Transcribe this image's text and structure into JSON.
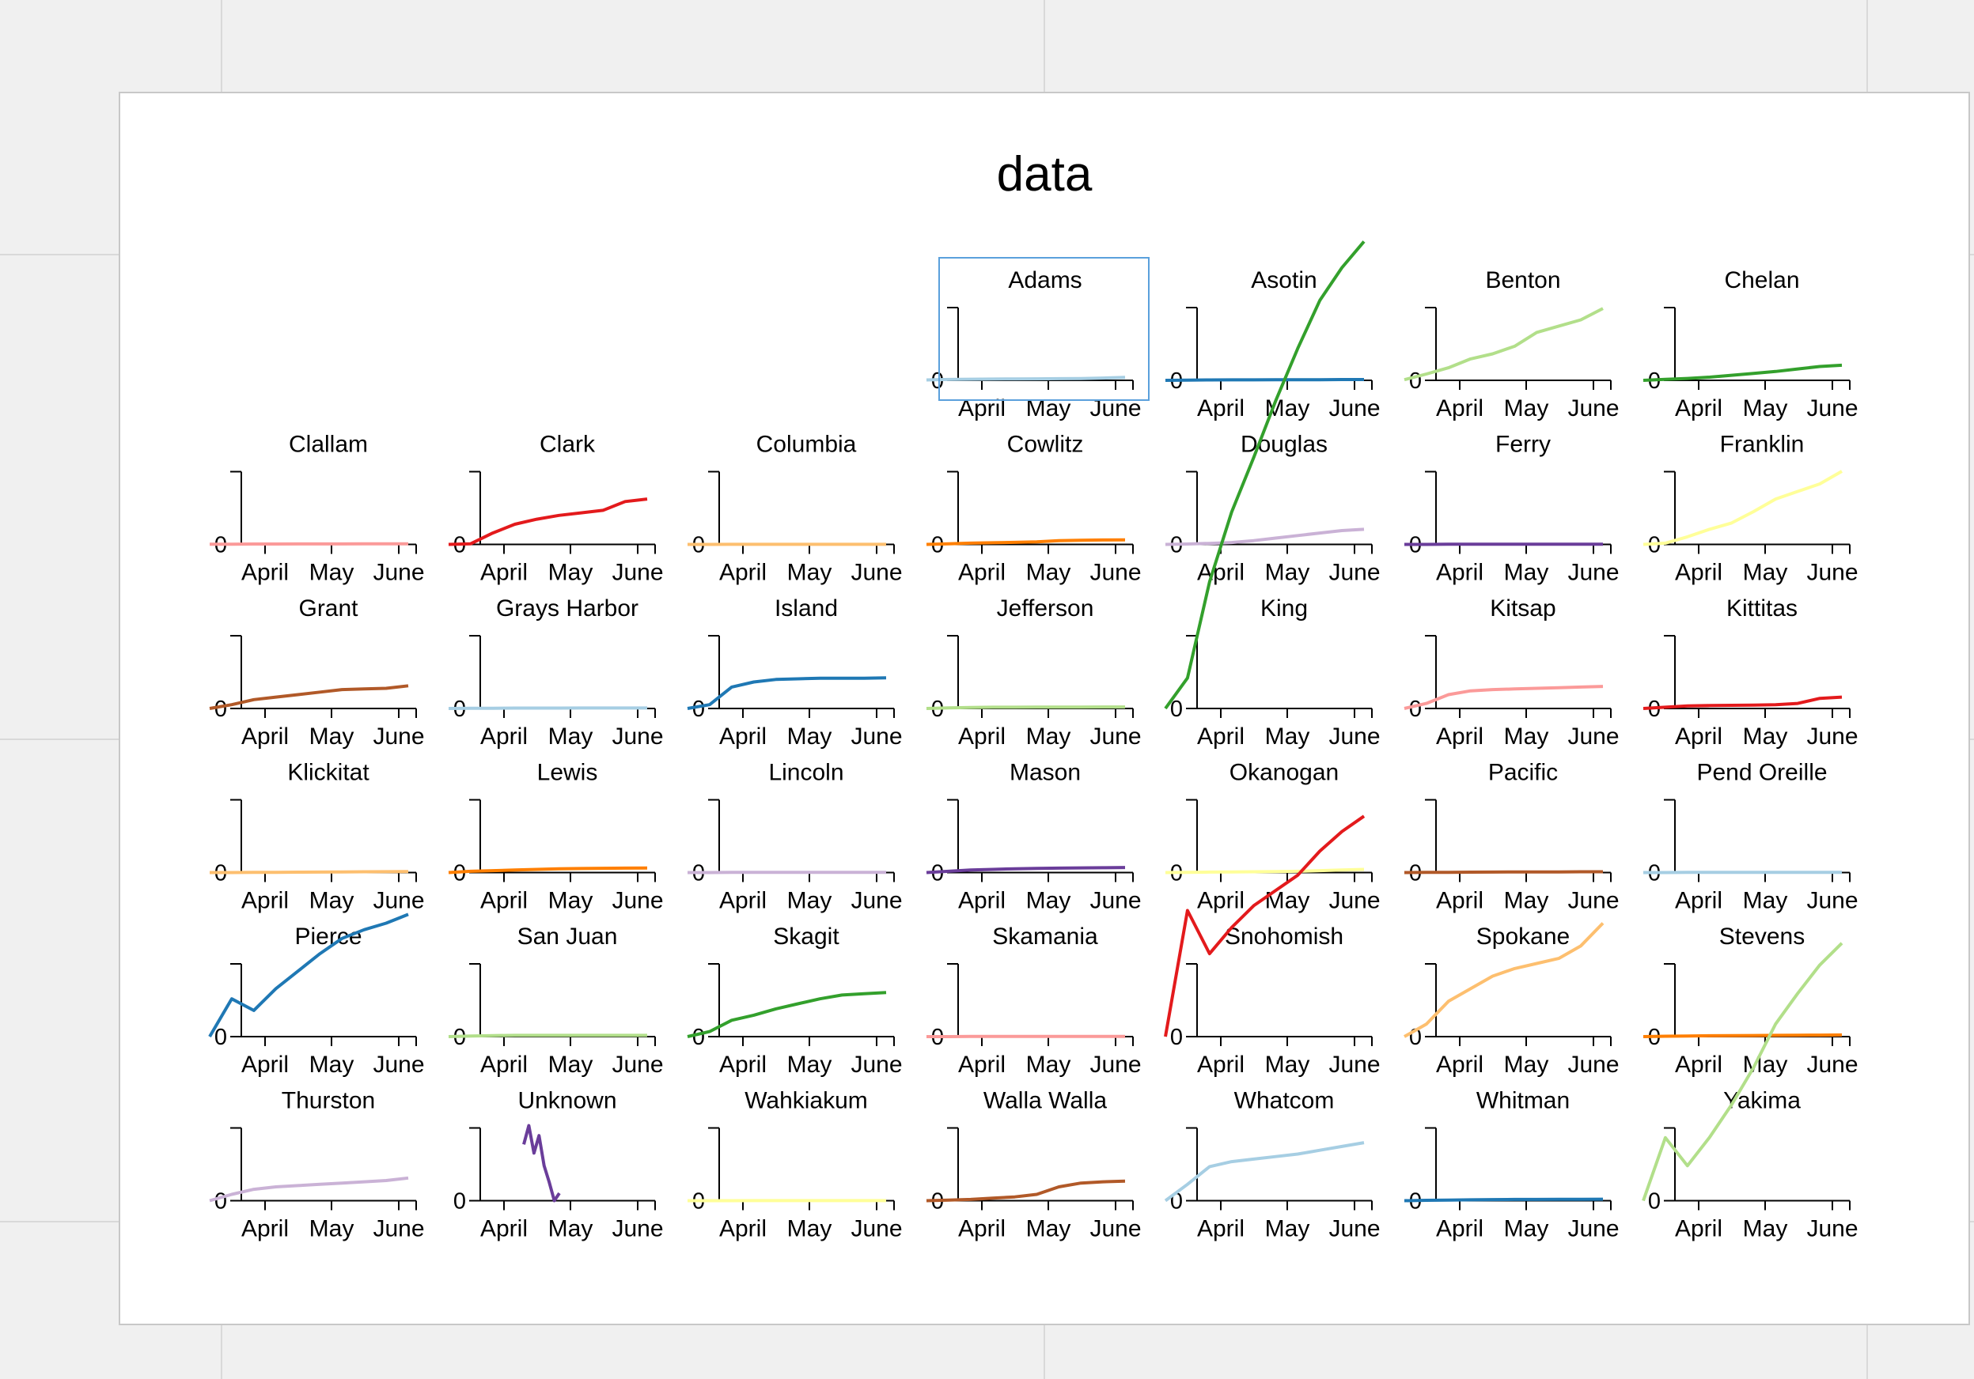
{
  "window": {
    "title": "data"
  },
  "chart_data": {
    "type": "line",
    "title": "data",
    "layout": "facet-grid",
    "grid_columns": 7,
    "x_tick_labels": [
      "April",
      "May",
      "June"
    ],
    "y_tick_labels": [
      "0"
    ],
    "x_range": [
      "2020-03-20",
      "2020-06-10"
    ],
    "selected_facet": "Adams",
    "facets": [
      {
        "name": "Adams",
        "color": "#a6cee3",
        "values": [
          0.3,
          0.7,
          0.9,
          1.0,
          1.1,
          1.2,
          1.3,
          1.4,
          1.8,
          2.4
        ]
      },
      {
        "name": "Asotin",
        "color": "#1f78b4",
        "values": [
          0,
          0.2,
          0.3,
          0.4,
          0.4,
          0.5,
          0.5,
          0.5,
          0.6,
          0.6
        ]
      },
      {
        "name": "Benton",
        "color": "#b2df8a",
        "values": [
          0.5,
          5,
          10,
          17,
          21,
          27,
          38,
          43,
          48,
          57
        ]
      },
      {
        "name": "Chelan",
        "color": "#33a02c",
        "values": [
          0,
          0.8,
          1.5,
          2.5,
          4,
          5.5,
          7,
          9,
          11,
          12
        ]
      },
      {
        "name": "Clallam",
        "color": "#fb9a99",
        "values": [
          0.1,
          0.2,
          0.3,
          0.3,
          0.4,
          0.4,
          0.4,
          0.5,
          0.5,
          0.5
        ]
      },
      {
        "name": "Clark",
        "color": "#e31a1c",
        "values": [
          0,
          0.5,
          9,
          16,
          20,
          23,
          25,
          27,
          34,
          36
        ]
      },
      {
        "name": "Columbia",
        "color": "#fdbf6f",
        "values": [
          0,
          0,
          0.05,
          0.05,
          0.05,
          0.05,
          0.05,
          0.05,
          0.05,
          0.05
        ]
      },
      {
        "name": "Cowlitz",
        "color": "#ff7f00",
        "values": [
          0,
          0.5,
          1,
          1.3,
          1.6,
          2,
          3,
          3.3,
          3.5,
          3.6
        ]
      },
      {
        "name": "Douglas",
        "color": "#cab2d6",
        "values": [
          0,
          0.3,
          0.8,
          1.5,
          3,
          5,
          7,
          9,
          11,
          12
        ]
      },
      {
        "name": "Ferry",
        "color": "#6a3d9a",
        "values": [
          0,
          0,
          0.1,
          0.1,
          0.1,
          0.1,
          0.1,
          0.1,
          0.1,
          0.1
        ]
      },
      {
        "name": "Franklin",
        "color": "#ffff99",
        "values": [
          0,
          1,
          6,
          12,
          17,
          26,
          36,
          42,
          48,
          58
        ]
      },
      {
        "name": "Grant",
        "color": "#b15928",
        "values": [
          0,
          3,
          7,
          9,
          11,
          13,
          15,
          15.5,
          16,
          18
        ]
      },
      {
        "name": "Grays Harbor",
        "color": "#a6cee3",
        "values": [
          0,
          0.1,
          0.2,
          0.3,
          0.3,
          0.3,
          0.4,
          0.4,
          0.4,
          0.4
        ]
      },
      {
        "name": "Island",
        "color": "#1f78b4",
        "values": [
          0,
          3,
          17,
          21,
          23,
          23.5,
          24,
          24,
          24,
          24.3
        ]
      },
      {
        "name": "Jefferson",
        "color": "#b2df8a",
        "values": [
          0,
          0.5,
          0.8,
          1,
          1,
          1.1,
          1.1,
          1.1,
          1.2,
          1.2
        ]
      },
      {
        "name": "King",
        "color": "#33a02c",
        "values": [
          0,
          140,
          580,
          900,
          1150,
          1410,
          1650,
          1870,
          2020,
          2140
        ]
      },
      {
        "name": "Kitsap",
        "color": "#fb9a99",
        "values": [
          0,
          4,
          11,
          14,
          15,
          15.5,
          16,
          16.5,
          17,
          17.5
        ]
      },
      {
        "name": "Kittitas",
        "color": "#e31a1c",
        "values": [
          0,
          1,
          2,
          2.3,
          2.5,
          2.7,
          3,
          4,
          8,
          9
        ]
      },
      {
        "name": "Klickitat",
        "color": "#fdbf6f",
        "values": [
          0,
          0,
          0.1,
          0.2,
          0.3,
          0.4,
          0.5,
          0.6,
          0.7,
          0.8
        ]
      },
      {
        "name": "Lewis",
        "color": "#ff7f00",
        "values": [
          0,
          1,
          1.5,
          2,
          2.5,
          3,
          3.2,
          3.4,
          3.5,
          3.6
        ]
      },
      {
        "name": "Lincoln",
        "color": "#cab2d6",
        "values": [
          0,
          0,
          0.1,
          0.1,
          0.1,
          0.1,
          0.1,
          0.1,
          0.1,
          0.1
        ]
      },
      {
        "name": "Mason",
        "color": "#6a3d9a",
        "values": [
          0,
          1,
          2,
          2.5,
          3,
          3.3,
          3.5,
          3.7,
          3.8,
          4
        ]
      },
      {
        "name": "Okanogan",
        "color": "#ffff99",
        "values": [
          0,
          0.2,
          0.4,
          0.5,
          0.6,
          0.8,
          1,
          1.5,
          2,
          2.5
        ]
      },
      {
        "name": "Pacific",
        "color": "#b15928",
        "values": [
          0,
          0.1,
          0.2,
          0.3,
          0.4,
          0.5,
          0.5,
          0.5,
          0.6,
          0.6
        ]
      },
      {
        "name": "Pend Oreille",
        "color": "#a6cee3",
        "values": [
          0,
          0,
          0.1,
          0.1,
          0.1,
          0.1,
          0.1,
          0.1,
          0.1,
          0.1
        ]
      },
      {
        "name": "Pierce",
        "color": "#1f78b4",
        "values": [
          0,
          30,
          120,
          220,
          300,
          380,
          450,
          490,
          520,
          560
        ]
      },
      {
        "name": "San Juan",
        "color": "#b2df8a",
        "values": [
          0,
          0.5,
          0.8,
          1,
          1,
          1,
          1,
          1,
          1,
          1
        ]
      },
      {
        "name": "Skagit",
        "color": "#33a02c",
        "values": [
          0,
          4,
          13,
          17,
          22,
          26,
          30,
          33,
          34,
          35
        ]
      },
      {
        "name": "Skamania",
        "color": "#fb9a99",
        "values": [
          0,
          0,
          0.1,
          0.1,
          0.1,
          0.2,
          0.2,
          0.2,
          0.2,
          0.2
        ]
      },
      {
        "name": "Snohomish",
        "color": "#e31a1c",
        "values": [
          0,
          100,
          380,
          500,
          600,
          670,
          740,
          850,
          940,
          1010
        ]
      },
      {
        "name": "Spokane",
        "color": "#fdbf6f",
        "values": [
          0,
          10,
          28,
          38,
          48,
          54,
          58,
          62,
          72,
          90
        ]
      },
      {
        "name": "Stevens",
        "color": "#ff7f00",
        "values": [
          0,
          0.3,
          0.5,
          0.7,
          0.8,
          0.9,
          1,
          1.1,
          1.2,
          1.3
        ]
      },
      {
        "name": "Thurston",
        "color": "#cab2d6",
        "values": [
          0,
          5,
          9,
          11,
          12,
          13,
          14,
          15,
          16,
          18
        ]
      },
      {
        "name": "Unknown",
        "color": "#6a3d9a",
        "values": [
          45,
          60,
          38,
          52,
          28,
          15,
          0,
          6
        ]
      },
      {
        "name": "Wahkiakum",
        "color": "#ffff99",
        "values": [
          0,
          0,
          0,
          0.05,
          0.05,
          0.05,
          0.05,
          0.05,
          0.05,
          0.05
        ]
      },
      {
        "name": "Walla Walla",
        "color": "#b15928",
        "values": [
          0,
          0.5,
          1,
          2,
          3,
          5,
          11,
          14,
          15,
          15.5
        ]
      },
      {
        "name": "Whatcom",
        "color": "#a6cee3",
        "values": [
          0,
          13,
          27,
          31,
          33,
          35,
          37,
          40,
          43,
          46
        ]
      },
      {
        "name": "Whitman",
        "color": "#1f78b4",
        "values": [
          0,
          0.3,
          0.5,
          0.7,
          0.9,
          1,
          1,
          1.1,
          1.1,
          1.2
        ]
      },
      {
        "name": "Yakima",
        "color": "#b2df8a",
        "values": [
          0,
          50,
          160,
          290,
          440,
          610,
          810,
          950,
          1080,
          1180
        ]
      }
    ]
  }
}
